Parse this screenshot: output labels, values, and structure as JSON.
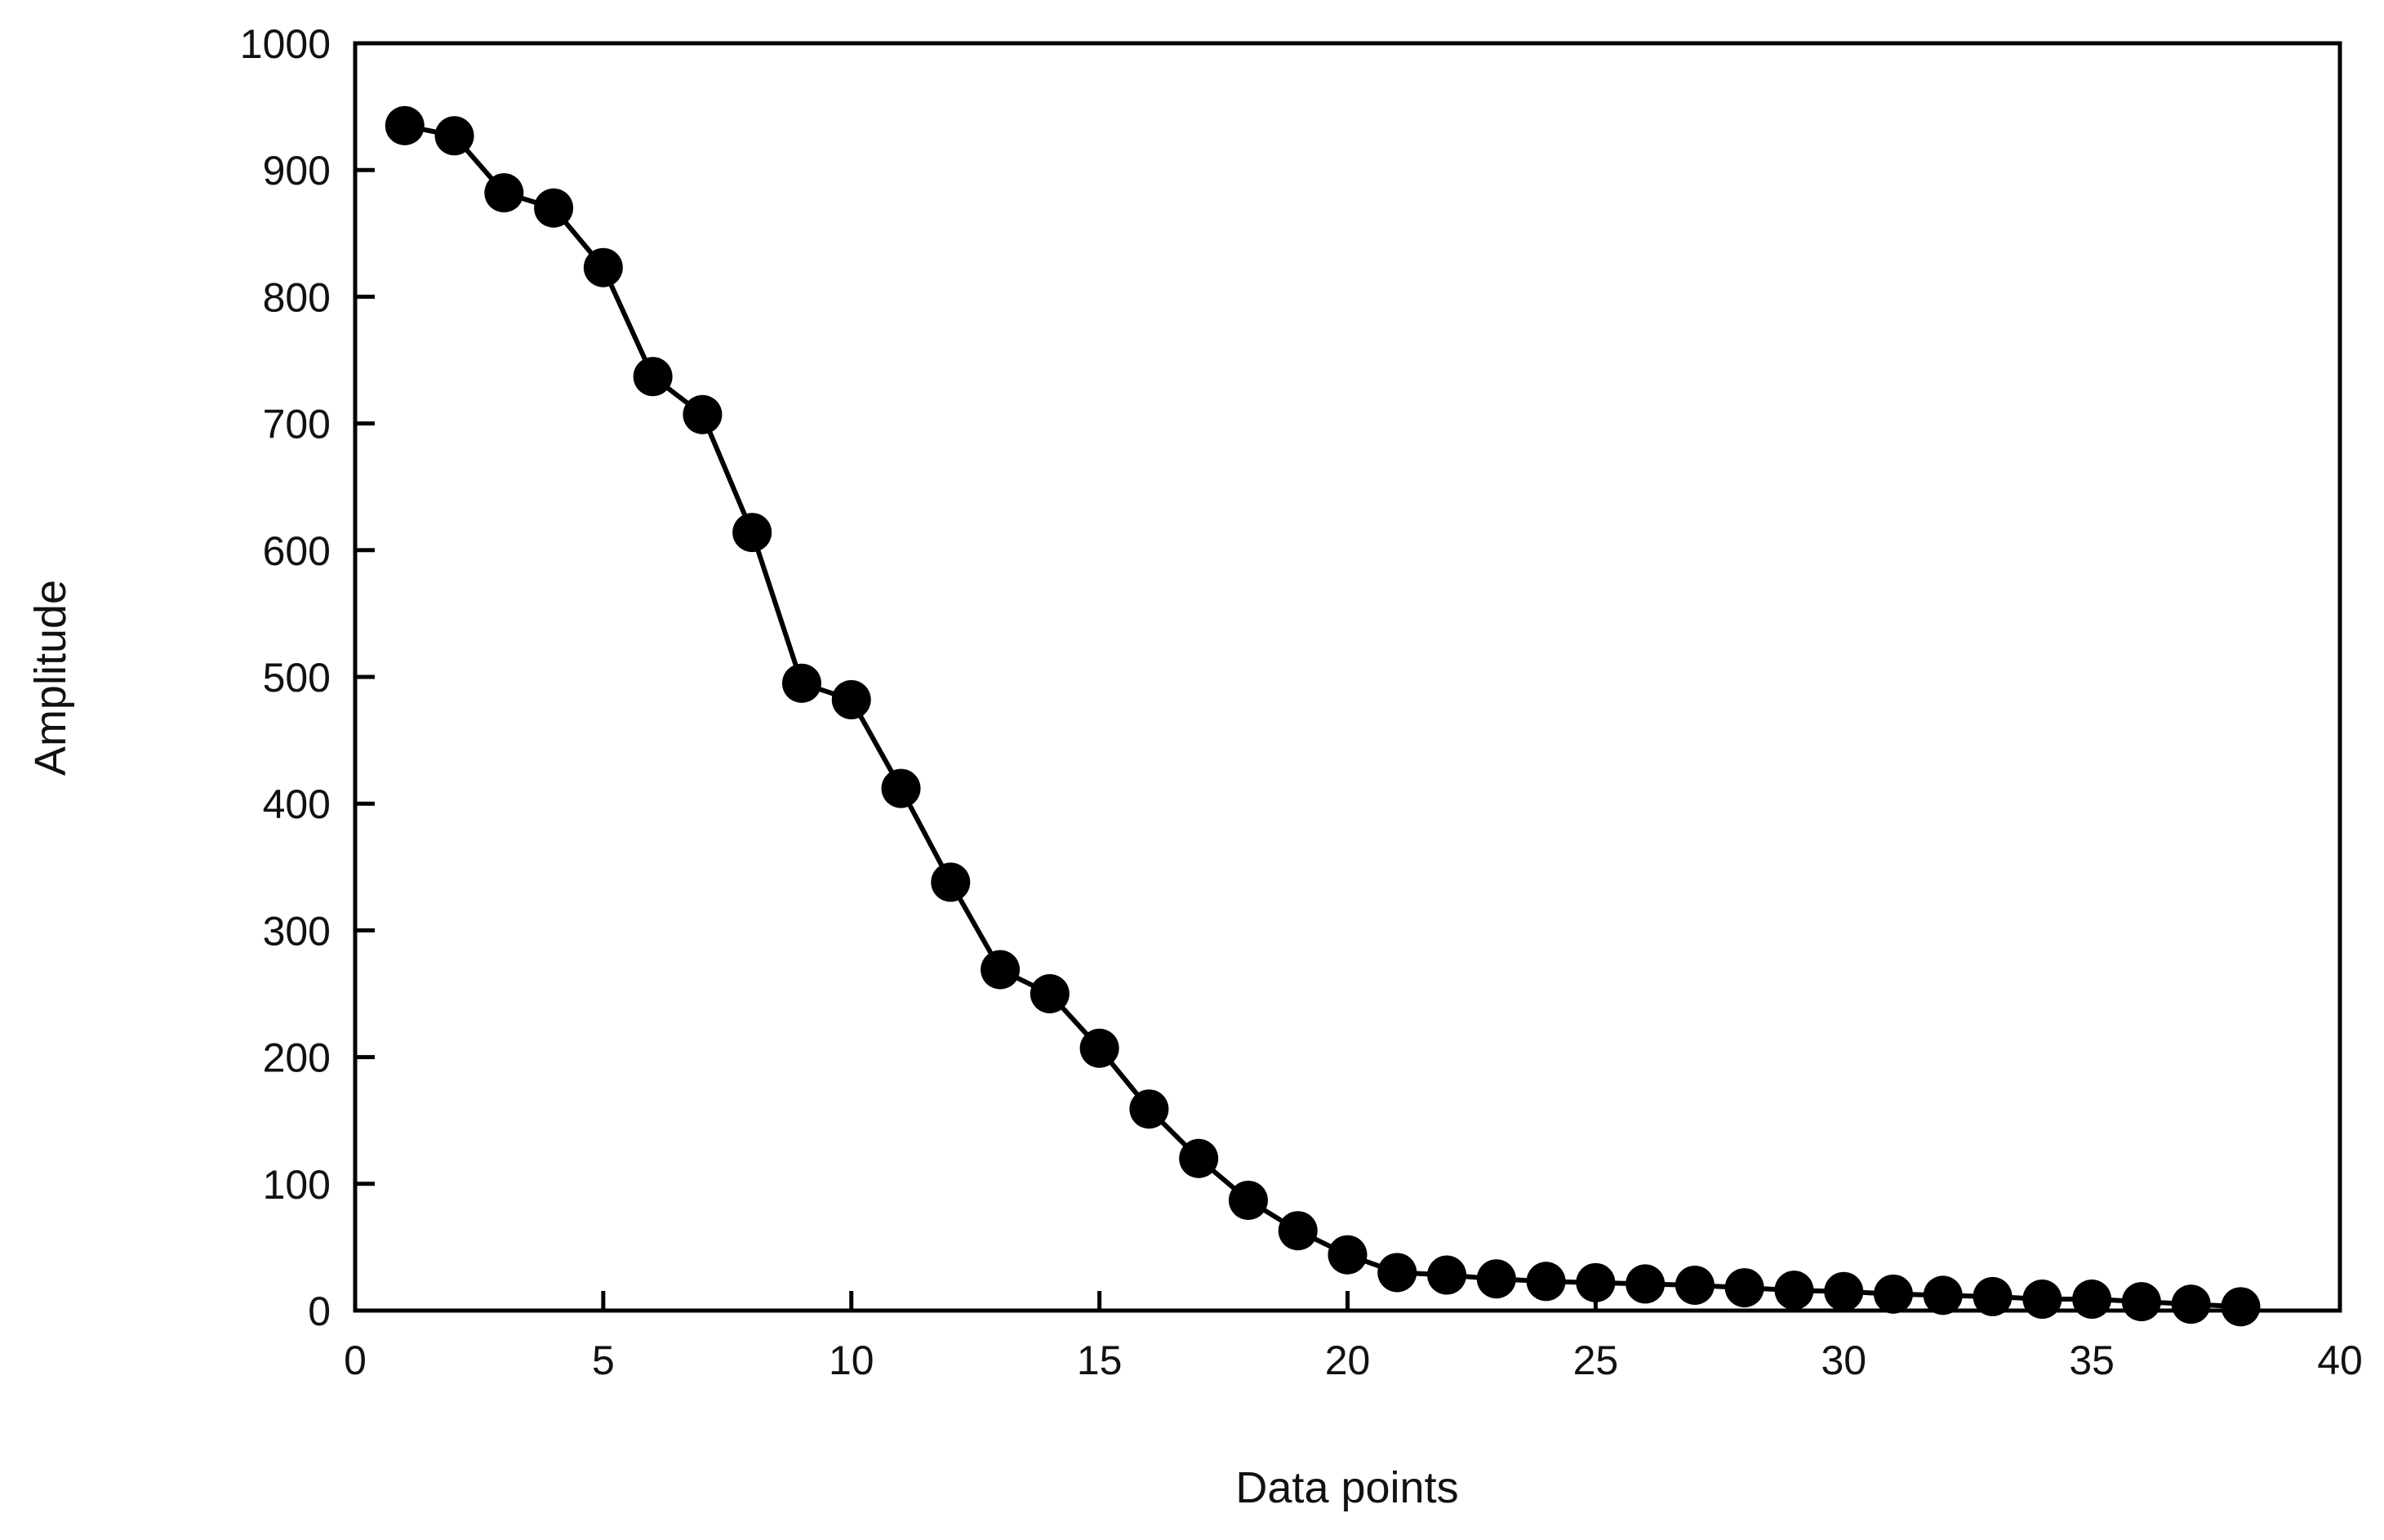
{
  "chart_data": {
    "type": "line",
    "title": "",
    "xlabel": "Data points",
    "ylabel": "Amplitude",
    "xlim": [
      0,
      40
    ],
    "ylim": [
      0,
      1000
    ],
    "x_ticks": [
      0,
      5,
      10,
      15,
      20,
      25,
      30,
      35,
      40
    ],
    "y_ticks": [
      0,
      100,
      200,
      300,
      400,
      500,
      600,
      700,
      800,
      900,
      1000
    ],
    "grid": false,
    "legend": "none",
    "marker": "filled-circle",
    "colors": {
      "line": "#000000",
      "marker": "#000000",
      "frame": "#000000",
      "background": "#ffffff"
    },
    "series": [
      {
        "x": [
          1,
          2,
          3,
          4,
          5,
          6,
          7,
          8,
          9,
          10,
          11,
          12,
          13,
          14,
          15,
          16,
          17,
          18,
          19,
          20,
          21,
          22,
          23,
          24,
          25,
          26,
          27,
          28,
          29,
          30,
          31,
          32,
          33,
          34,
          35,
          36,
          37,
          38
        ],
        "y": [
          935,
          927,
          882,
          870,
          823,
          737,
          707,
          614,
          495,
          482,
          412,
          338,
          269,
          250,
          207,
          159,
          120,
          87,
          63,
          44,
          30,
          28,
          25,
          23,
          22,
          21,
          20,
          18,
          16,
          15,
          13,
          12,
          11,
          9,
          9,
          7,
          5,
          3
        ]
      }
    ]
  }
}
